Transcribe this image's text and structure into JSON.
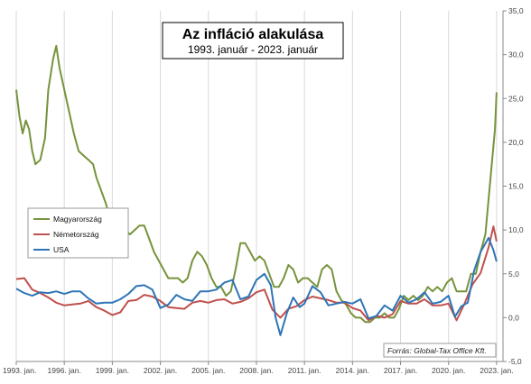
{
  "chart_data": {
    "type": "line",
    "title": "Az infláció alakulása",
    "subtitle": "1993. január - 2023. január",
    "source": "Forrás: Global-Tax Office Kft.",
    "x_tick_labels": [
      "1993. jan.",
      "1996. jan.",
      "1999. jan.",
      "2002. jan.",
      "2005. jan.",
      "2008. jan.",
      "2011. jan.",
      "2014. jan.",
      "2017. jan.",
      "2020. jan.",
      "2023. jan."
    ],
    "y_tick_labels": [
      "-5,0",
      "0,0",
      "5,0",
      "10,0",
      "15,0",
      "20,0",
      "25,0",
      "30,0",
      "35,0"
    ],
    "ylim": [
      -5,
      35
    ],
    "xlim": [
      1993.0,
      2023.4
    ],
    "y_axis_position": "right",
    "grid": "vertical",
    "legend_position": "left-middle",
    "series": [
      {
        "name": "Magyarország",
        "color": "#77933c",
        "x": [
          1993.0,
          1993.2,
          1993.4,
          1993.6,
          1993.8,
          1994.0,
          1994.2,
          1994.5,
          1994.8,
          1995.0,
          1995.3,
          1995.5,
          1995.7,
          1996.0,
          1996.3,
          1996.6,
          1996.9,
          1997.2,
          1997.5,
          1997.8,
          1998.0,
          1998.3,
          1998.6,
          1998.9,
          1999.2,
          1999.5,
          1999.8,
          2000.1,
          2000.4,
          2000.7,
          2001.0,
          2001.3,
          2001.6,
          2001.9,
          2002.2,
          2002.5,
          2002.8,
          2003.1,
          2003.4,
          2003.7,
          2004.0,
          2004.3,
          2004.6,
          2004.9,
          2005.2,
          2005.5,
          2005.8,
          2006.1,
          2006.4,
          2006.7,
          2007.0,
          2007.3,
          2007.6,
          2007.9,
          2008.2,
          2008.5,
          2008.8,
          2009.1,
          2009.4,
          2009.7,
          2010.0,
          2010.3,
          2010.6,
          2010.9,
          2011.2,
          2011.5,
          2011.8,
          2012.1,
          2012.4,
          2012.7,
          2013.0,
          2013.3,
          2013.6,
          2013.9,
          2014.2,
          2014.5,
          2014.8,
          2015.1,
          2015.4,
          2015.7,
          2016.0,
          2016.3,
          2016.6,
          2016.9,
          2017.2,
          2017.5,
          2017.8,
          2018.1,
          2018.4,
          2018.7,
          2019.0,
          2019.3,
          2019.6,
          2019.9,
          2020.2,
          2020.5,
          2020.8,
          2021.1,
          2021.4,
          2021.7,
          2022.0,
          2022.3,
          2022.6,
          2022.9,
          2023.0
        ],
        "values": [
          26.0,
          23.0,
          21.0,
          22.5,
          21.5,
          19.0,
          17.5,
          18.0,
          20.5,
          26.0,
          29.5,
          31.0,
          28.5,
          26.0,
          23.5,
          21.0,
          19.0,
          18.5,
          18.0,
          17.5,
          16.0,
          14.5,
          13.0,
          11.0,
          10.0,
          10.5,
          10.0,
          9.5,
          10.0,
          10.5,
          10.5,
          9.0,
          7.5,
          6.5,
          5.5,
          4.5,
          4.5,
          4.5,
          4.0,
          4.5,
          6.5,
          7.5,
          7.0,
          6.0,
          4.5,
          3.5,
          3.5,
          2.5,
          3.0,
          5.5,
          8.5,
          8.5,
          7.5,
          6.5,
          7.0,
          6.5,
          5.0,
          3.5,
          3.5,
          4.5,
          6.0,
          5.5,
          4.0,
          4.5,
          4.5,
          4.0,
          3.5,
          5.5,
          6.0,
          5.5,
          3.0,
          2.0,
          1.5,
          0.5,
          0.0,
          0.0,
          -0.5,
          -0.5,
          0.0,
          0.0,
          0.5,
          0.0,
          0.0,
          1.0,
          2.5,
          2.0,
          2.5,
          2.0,
          2.5,
          3.5,
          3.0,
          3.5,
          3.0,
          4.0,
          4.5,
          3.0,
          3.0,
          3.0,
          5.0,
          5.0,
          7.5,
          9.5,
          15.5,
          21.5,
          25.7
        ]
      },
      {
        "name": "Németország",
        "color": "#c0504d",
        "x": [
          1993.0,
          1993.5,
          1994.0,
          1994.5,
          1995.0,
          1995.5,
          1996.0,
          1996.5,
          1997.0,
          1997.5,
          1998.0,
          1998.5,
          1999.0,
          1999.5,
          2000.0,
          2000.5,
          2001.0,
          2001.5,
          2002.0,
          2002.5,
          2003.0,
          2003.5,
          2004.0,
          2004.5,
          2005.0,
          2005.5,
          2006.0,
          2006.5,
          2007.0,
          2007.5,
          2008.0,
          2008.5,
          2009.0,
          2009.5,
          2010.0,
          2010.5,
          2011.0,
          2011.5,
          2012.0,
          2012.5,
          2013.0,
          2013.5,
          2014.0,
          2014.5,
          2015.0,
          2015.5,
          2016.0,
          2016.5,
          2017.0,
          2017.5,
          2018.0,
          2018.5,
          2019.0,
          2019.5,
          2020.0,
          2020.5,
          2021.0,
          2021.5,
          2022.0,
          2022.5,
          2022.8,
          2023.0
        ],
        "values": [
          4.4,
          4.5,
          3.2,
          2.8,
          2.3,
          1.7,
          1.4,
          1.5,
          1.6,
          1.9,
          1.2,
          0.8,
          0.3,
          0.6,
          1.9,
          2.0,
          2.6,
          2.4,
          1.9,
          1.2,
          1.1,
          1.0,
          1.7,
          1.9,
          1.7,
          2.0,
          2.1,
          1.6,
          1.8,
          2.2,
          2.9,
          3.2,
          0.9,
          0.0,
          1.0,
          1.3,
          2.0,
          2.4,
          2.2,
          2.0,
          1.7,
          1.7,
          1.1,
          0.8,
          -0.3,
          0.2,
          0.0,
          0.4,
          1.9,
          1.6,
          1.6,
          2.1,
          1.4,
          1.4,
          1.6,
          -0.3,
          1.6,
          3.8,
          5.1,
          8.0,
          10.4,
          8.7
        ]
      },
      {
        "name": "USA",
        "color": "#2e75b6",
        "x": [
          1993.0,
          1993.5,
          1994.0,
          1994.5,
          1995.0,
          1995.5,
          1996.0,
          1996.5,
          1997.0,
          1997.5,
          1998.0,
          1998.5,
          1999.0,
          1999.5,
          2000.0,
          2000.5,
          2001.0,
          2001.5,
          2002.0,
          2002.5,
          2003.0,
          2003.5,
          2004.0,
          2004.5,
          2005.0,
          2005.5,
          2006.0,
          2006.5,
          2007.0,
          2007.5,
          2008.0,
          2008.5,
          2008.9,
          2009.2,
          2009.5,
          2009.9,
          2010.3,
          2010.7,
          2011.0,
          2011.5,
          2012.0,
          2012.5,
          2013.0,
          2013.5,
          2014.0,
          2014.5,
          2015.0,
          2015.5,
          2016.0,
          2016.5,
          2017.0,
          2017.5,
          2018.0,
          2018.5,
          2019.0,
          2019.5,
          2020.0,
          2020.4,
          2020.8,
          2021.2,
          2021.6,
          2022.0,
          2022.5,
          2022.8,
          2023.0
        ],
        "values": [
          3.3,
          2.8,
          2.5,
          2.9,
          2.8,
          3.0,
          2.7,
          3.0,
          3.0,
          2.2,
          1.6,
          1.7,
          1.7,
          2.1,
          2.7,
          3.6,
          3.7,
          3.2,
          1.1,
          1.5,
          2.6,
          2.1,
          1.9,
          3.0,
          3.0,
          3.2,
          4.0,
          4.3,
          2.1,
          2.4,
          4.3,
          5.0,
          3.7,
          0.0,
          -2.0,
          0.5,
          2.3,
          1.2,
          1.6,
          3.6,
          2.9,
          1.4,
          1.6,
          1.8,
          1.6,
          2.1,
          -0.1,
          0.2,
          1.4,
          0.8,
          2.5,
          1.7,
          2.1,
          2.9,
          1.6,
          1.8,
          2.5,
          0.1,
          1.3,
          1.7,
          5.4,
          7.5,
          9.1,
          7.7,
          6.4
        ]
      }
    ]
  }
}
